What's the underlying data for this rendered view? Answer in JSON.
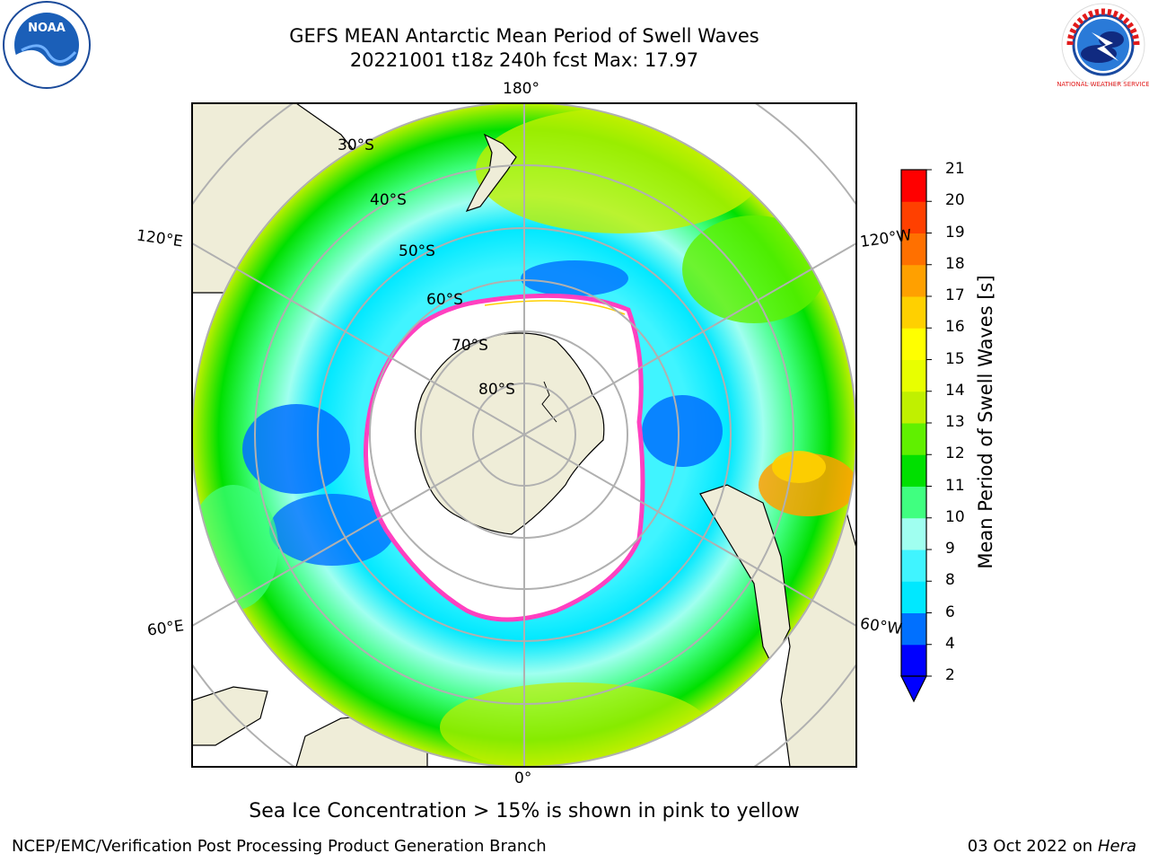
{
  "title": {
    "line1": "GEFS MEAN Antarctic Mean Period of Swell Waves",
    "line2": "20221001 t18z 240h fcst   Max: 17.97"
  },
  "logos": {
    "left": "NOAA",
    "right": "NATIONAL WEATHER SERVICE"
  },
  "map": {
    "projection": "south-polar-stereographic",
    "lon_labels": [
      "180°",
      "120°E",
      "120°W",
      "60°E",
      "60°W",
      "0°"
    ],
    "lat_labels": [
      "30°S",
      "40°S",
      "50°S",
      "60°S",
      "70°S",
      "80°S"
    ]
  },
  "colorbar": {
    "title": "Mean Period of Swell Waves [s]",
    "ticks": [
      "2",
      "4",
      "6",
      "8",
      "9",
      "10",
      "11",
      "12",
      "13",
      "14",
      "15",
      "16",
      "17",
      "18",
      "19",
      "20",
      "21"
    ],
    "colors": [
      "#0000ff",
      "#0070ff",
      "#00e8ff",
      "#40f4ff",
      "#a0fff0",
      "#40ff80",
      "#00e000",
      "#60f000",
      "#c0f000",
      "#e8ff00",
      "#ffff00",
      "#ffd000",
      "#ffa000",
      "#ff7000",
      "#ff4000",
      "#ff0000"
    ]
  },
  "caption": "Sea Ice Concentration > 15% is shown in pink to yellow",
  "footer": {
    "left": "NCEP/EMC/Verification Post Processing Product Generation Branch",
    "right_prefix": "03 Oct 2022 on ",
    "right_host": "Hera"
  }
}
